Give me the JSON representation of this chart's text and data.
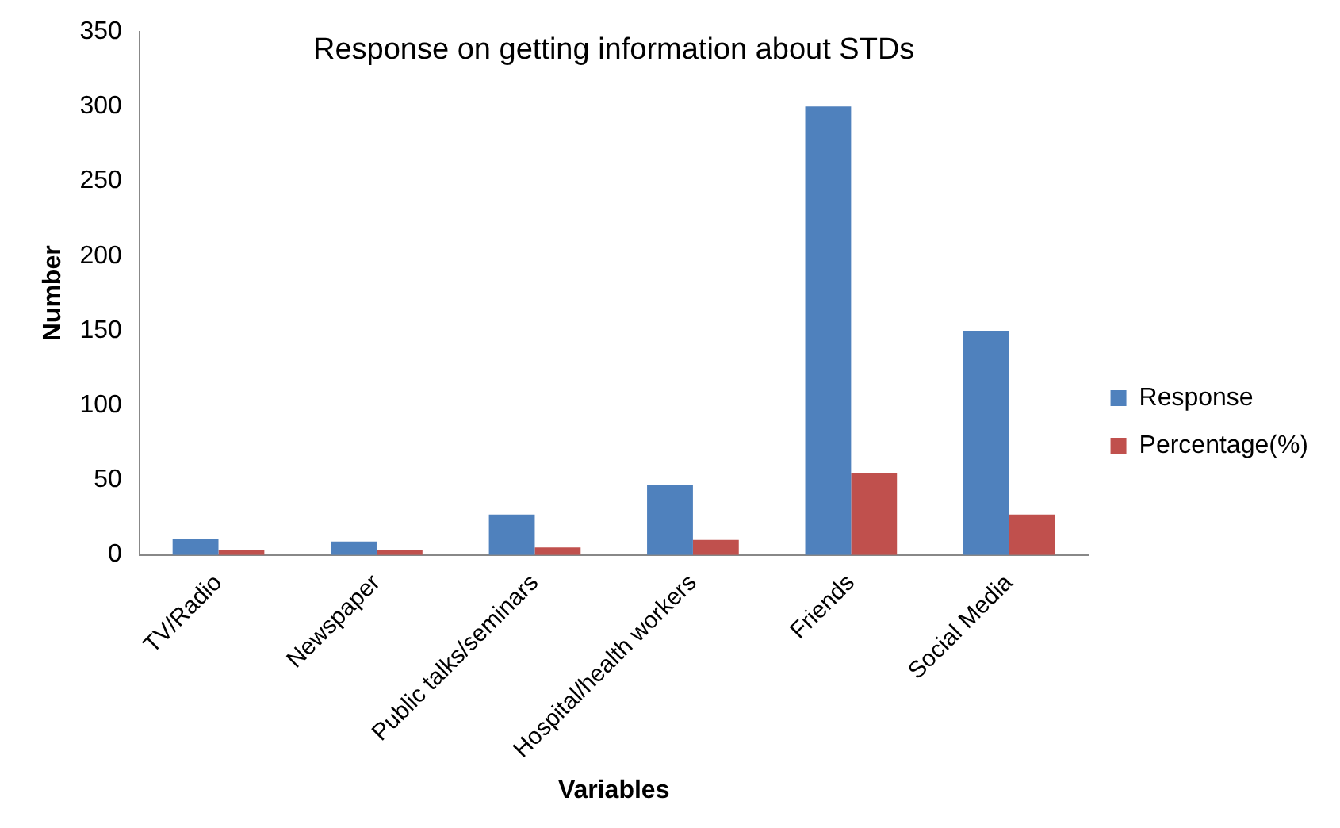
{
  "chart_data": {
    "type": "bar",
    "title": "Response on getting information about STDs",
    "xlabel": "Variables",
    "ylabel": "Number",
    "categories": [
      "TV/Radio",
      "Newspaper",
      "Public talks/seminars",
      "Hospital/health workers",
      "Friends",
      "Social Media"
    ],
    "series": [
      {
        "name": "Response",
        "color": "#4f81bd",
        "values": [
          11,
          9,
          27,
          47,
          300,
          150
        ]
      },
      {
        "name": "Percentage(%)",
        "color": "#c0504d",
        "values": [
          3,
          3,
          5,
          10,
          55,
          27
        ]
      }
    ],
    "ylim": [
      0,
      350
    ],
    "yticks": [
      0,
      50,
      100,
      150,
      200,
      250,
      300,
      350
    ],
    "grid": false,
    "legend": "right"
  }
}
